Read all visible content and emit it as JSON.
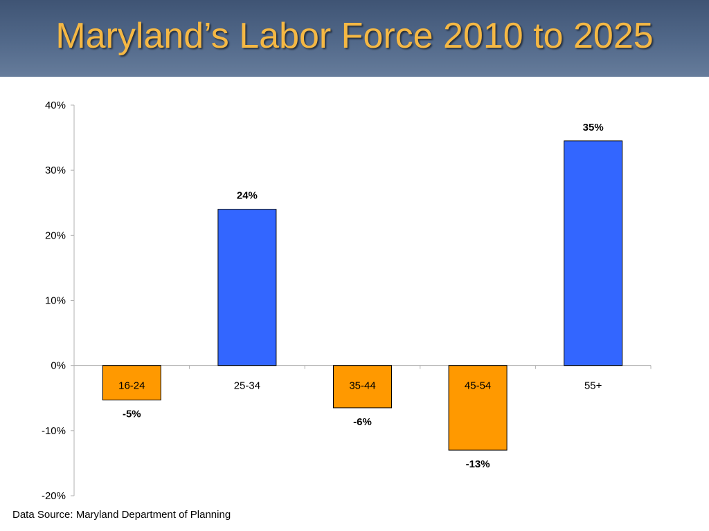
{
  "slide": {
    "title": "Maryland’s Labor Force 2010 to 2025",
    "source": "Data Source: Maryland Department of Planning"
  },
  "colors": {
    "title_bar": "#4a5f80",
    "title_text": "#f5b844",
    "positive_bar": "#3366ff",
    "negative_bar": "#ff9900"
  },
  "chart_data": {
    "type": "bar",
    "title": "",
    "xlabel": "",
    "ylabel": "",
    "categories": [
      "16-24",
      "25-34",
      "35-44",
      "45-54",
      "55+"
    ],
    "values": [
      -5.3,
      24,
      -6.5,
      -13,
      34.5
    ],
    "data_labels": [
      "-5%",
      "24%",
      "-6%",
      "-13%",
      "35%"
    ],
    "ylim": [
      -20,
      40
    ],
    "yticks": [
      40,
      30,
      20,
      10,
      0,
      -10,
      -20
    ],
    "ytick_labels": [
      "40%",
      "30%",
      "20%",
      "10%",
      "0%",
      "-10%",
      "-20%"
    ],
    "grid": false,
    "legend": "none"
  }
}
